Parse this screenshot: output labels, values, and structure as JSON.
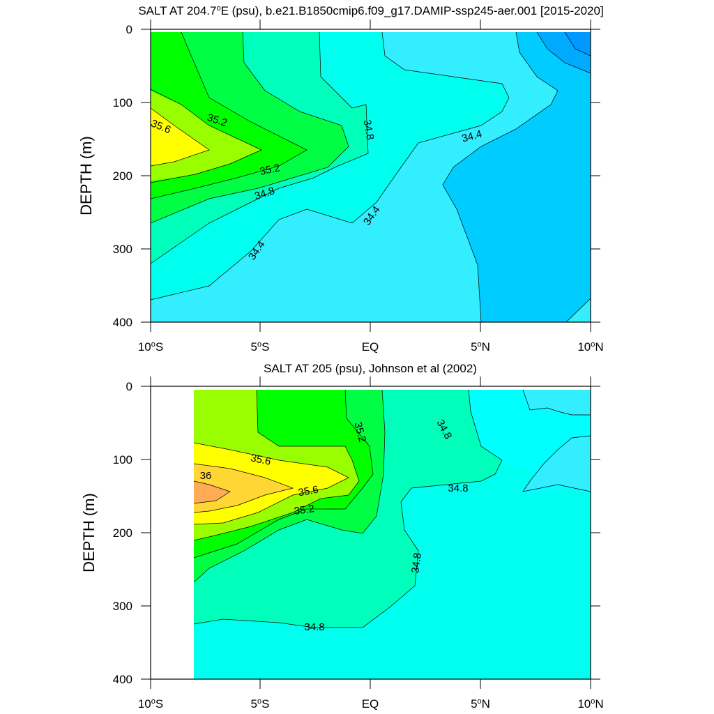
{
  "chart_data": [
    {
      "type": "contour",
      "title_parts": [
        "SALT AT 204.7",
        "o",
        "E (psu), b.e21.B1850cmip6.f09_g17.DAMIP-ssp245-aer.001 [2015-2020]"
      ],
      "ylabel": "DEPTH (m)",
      "x_ticks": [
        "10",
        "S",
        "5",
        "S",
        "EQ",
        "5",
        "N",
        "10",
        "N"
      ],
      "x_tick_values": [
        -10,
        -5,
        0,
        5,
        10
      ],
      "y_ticks": [
        "0",
        "100",
        "200",
        "300",
        "400"
      ],
      "y_tick_values": [
        0,
        100,
        200,
        300,
        400
      ],
      "xlim": [
        -10,
        10
      ],
      "ylim": [
        400,
        0
      ],
      "contour_labels": [
        "35.2",
        "35.6",
        "34.8",
        "34.4",
        "35.2",
        "34.8",
        "34.4",
        "34.4"
      ],
      "palette": {
        "34.0": "#0099ff",
        "34.2": "#00ccff",
        "34.4": "#33eeff",
        "34.6": "#00ffee",
        "34.8": "#00ffbb",
        "35.0": "#00ff44",
        "35.2": "#00ff00",
        "35.4": "#99ff00",
        "35.6": "#ffff00",
        "35.8": "#ffd633",
        "36.0": "#ffaa55"
      }
    },
    {
      "type": "contour",
      "title_parts": [
        "SALT AT 205 (psu), Johnson et al (2002)"
      ],
      "ylabel": "DEPTH (m)",
      "x_ticks": [
        "10",
        "S",
        "5",
        "S",
        "EQ",
        "5",
        "N",
        "10",
        "N"
      ],
      "x_tick_values": [
        -10,
        -5,
        0,
        5,
        10
      ],
      "y_ticks": [
        "0",
        "100",
        "200",
        "300",
        "400"
      ],
      "y_tick_values": [
        0,
        100,
        200,
        300,
        400
      ],
      "xlim": [
        -10,
        10
      ],
      "ylim": [
        400,
        0
      ],
      "contour_labels": [
        "35.2",
        "34.8",
        "35.6",
        "36",
        "35.6",
        "35.2",
        "34.8",
        "34.8",
        "34.8"
      ]
    }
  ]
}
